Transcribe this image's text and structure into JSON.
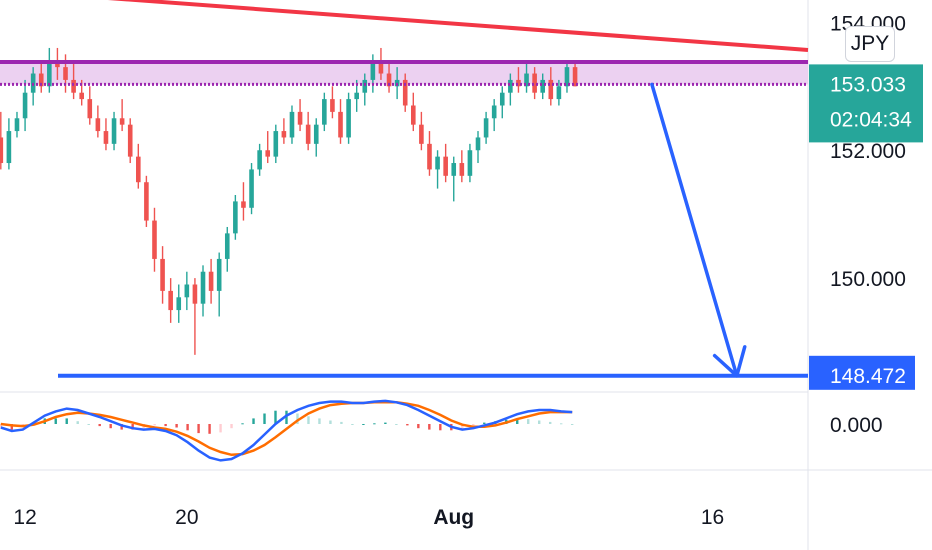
{
  "currency_badge": "JPY",
  "price_tag": {
    "price": "153.033",
    "countdown": "02:04:34",
    "color": "#26a69a"
  },
  "target_tag": {
    "price": "148.472",
    "color": "#2962ff"
  },
  "chart_data": {
    "type": "candlestick",
    "y_tick_labels": [
      "154.000",
      "152.000",
      "150.000"
    ],
    "y_ticks": [
      154.0,
      152.0,
      150.0
    ],
    "ylim": [
      148.25,
      154.35
    ],
    "x_tick_labels": [
      "12",
      "20",
      "Aug",
      "16"
    ],
    "x_tick_positions": [
      5,
      25,
      58,
      90
    ],
    "x_range": [
      1.9,
      101.8
    ],
    "candles_ohlc": [
      [
        152.2,
        152.6,
        151.7,
        151.8
      ],
      [
        151.8,
        152.5,
        151.7,
        152.3
      ],
      [
        152.3,
        152.6,
        152.2,
        152.5
      ],
      [
        152.5,
        153.1,
        152.3,
        152.9
      ],
      [
        152.9,
        153.3,
        152.7,
        153.2
      ],
      [
        153.2,
        153.4,
        152.9,
        153.0
      ],
      [
        153.0,
        153.6,
        152.9,
        153.4
      ],
      [
        153.4,
        153.6,
        153.1,
        153.3
      ],
      [
        153.3,
        153.5,
        152.9,
        153.1
      ],
      [
        153.1,
        153.4,
        152.8,
        152.9
      ],
      [
        152.9,
        153.1,
        152.7,
        152.8
      ],
      [
        152.8,
        153.0,
        152.4,
        152.5
      ],
      [
        152.5,
        152.7,
        152.2,
        152.3
      ],
      [
        152.3,
        152.5,
        152.0,
        152.1
      ],
      [
        152.1,
        152.6,
        152.0,
        152.5
      ],
      [
        152.5,
        152.8,
        152.3,
        152.4
      ],
      [
        152.4,
        152.5,
        151.8,
        151.9
      ],
      [
        151.9,
        152.1,
        151.4,
        151.5
      ],
      [
        151.5,
        151.6,
        150.8,
        150.9
      ],
      [
        150.9,
        151.1,
        150.1,
        150.3
      ],
      [
        150.3,
        150.5,
        149.6,
        149.8
      ],
      [
        149.8,
        150.0,
        149.3,
        149.5
      ],
      [
        149.5,
        149.9,
        149.3,
        149.7
      ],
      [
        149.7,
        150.1,
        149.5,
        149.9
      ],
      [
        149.9,
        150.0,
        148.8,
        149.6
      ],
      [
        149.6,
        150.2,
        149.4,
        150.1
      ],
      [
        150.1,
        150.3,
        149.6,
        149.8
      ],
      [
        149.8,
        150.4,
        149.4,
        150.3
      ],
      [
        150.3,
        150.8,
        150.1,
        150.7
      ],
      [
        150.7,
        151.3,
        150.6,
        151.2
      ],
      [
        151.2,
        151.5,
        150.9,
        151.1
      ],
      [
        151.1,
        151.8,
        151.0,
        151.7
      ],
      [
        151.7,
        152.1,
        151.6,
        152.0
      ],
      [
        152.0,
        152.3,
        151.8,
        151.9
      ],
      [
        151.9,
        152.4,
        151.8,
        152.3
      ],
      [
        152.3,
        152.5,
        152.1,
        152.2
      ],
      [
        152.2,
        152.7,
        152.1,
        152.6
      ],
      [
        152.6,
        152.8,
        152.3,
        152.4
      ],
      [
        152.4,
        152.6,
        152.0,
        152.1
      ],
      [
        152.1,
        152.5,
        151.9,
        152.4
      ],
      [
        152.4,
        152.9,
        152.3,
        152.8
      ],
      [
        152.8,
        153.0,
        152.5,
        152.6
      ],
      [
        152.6,
        152.8,
        152.1,
        152.2
      ],
      [
        152.2,
        152.9,
        152.1,
        152.8
      ],
      [
        152.8,
        153.1,
        152.6,
        152.9
      ],
      [
        152.9,
        153.2,
        152.7,
        153.1
      ],
      [
        153.1,
        153.5,
        152.9,
        153.4
      ],
      [
        153.4,
        153.6,
        153.1,
        153.2
      ],
      [
        153.2,
        153.4,
        152.9,
        153.0
      ],
      [
        153.0,
        153.3,
        152.8,
        153.1
      ],
      [
        153.1,
        153.2,
        152.6,
        152.7
      ],
      [
        152.7,
        152.9,
        152.3,
        152.4
      ],
      [
        152.4,
        152.6,
        152.0,
        152.1
      ],
      [
        152.1,
        152.3,
        151.6,
        151.7
      ],
      [
        151.7,
        152.0,
        151.4,
        151.9
      ],
      [
        151.9,
        152.1,
        151.5,
        151.6
      ],
      [
        151.6,
        151.9,
        151.2,
        151.8
      ],
      [
        151.8,
        152.0,
        151.5,
        151.6
      ],
      [
        151.6,
        152.1,
        151.5,
        152.0
      ],
      [
        152.0,
        152.3,
        151.8,
        152.2
      ],
      [
        152.2,
        152.6,
        152.1,
        152.5
      ],
      [
        152.5,
        152.8,
        152.3,
        152.7
      ],
      [
        152.7,
        153.0,
        152.5,
        152.9
      ],
      [
        152.9,
        153.2,
        152.7,
        153.1
      ],
      [
        153.1,
        153.3,
        152.9,
        153.0
      ],
      [
        153.0,
        153.4,
        152.9,
        153.2
      ],
      [
        153.2,
        153.3,
        152.8,
        152.9
      ],
      [
        152.9,
        153.2,
        152.8,
        153.1
      ],
      [
        153.1,
        153.3,
        152.7,
        152.8
      ],
      [
        152.8,
        153.1,
        152.7,
        153.0
      ],
      [
        153.0,
        153.4,
        152.9,
        153.3
      ],
      [
        153.3,
        153.4,
        153.0,
        153.0
      ]
    ],
    "horizontal_lines": [
      {
        "price": 153.38,
        "color": "#9c27b0"
      },
      {
        "price": 153.03,
        "color": "#9c27b0",
        "style": "dotted"
      },
      {
        "price": 148.472,
        "color": "#2962ff"
      }
    ],
    "resistance_zone": [
      153.03,
      153.38
    ],
    "trendline": {
      "from": [
        1.9,
        154.35
      ],
      "to": [
        101.8,
        153.6
      ],
      "color": "#f23645"
    },
    "projection_arrow": {
      "from": [
        82.5,
        153.03
      ],
      "to": [
        93,
        148.472
      ],
      "color": "#2962ff"
    },
    "macd": {
      "zero_label": "0.000",
      "macd_line": [
        -0.05,
        -0.1,
        -0.08,
        0.02,
        0.12,
        0.18,
        0.22,
        0.2,
        0.15,
        0.1,
        0.04,
        -0.02,
        -0.06,
        -0.08,
        -0.07,
        -0.1,
        -0.16,
        -0.26,
        -0.38,
        -0.48,
        -0.52,
        -0.5,
        -0.42,
        -0.3,
        -0.15,
        0.0,
        0.12,
        0.2,
        0.26,
        0.3,
        0.32,
        0.32,
        0.3,
        0.3,
        0.32,
        0.33,
        0.31,
        0.27,
        0.2,
        0.12,
        0.04,
        -0.04,
        -0.08,
        -0.06,
        -0.02,
        0.02,
        0.08,
        0.14,
        0.18,
        0.2,
        0.2,
        0.18,
        0.17
      ],
      "signal_line": [
        0.0,
        -0.02,
        -0.03,
        -0.01,
        0.04,
        0.1,
        0.14,
        0.16,
        0.15,
        0.13,
        0.1,
        0.06,
        0.02,
        -0.02,
        -0.05,
        -0.07,
        -0.11,
        -0.17,
        -0.25,
        -0.34,
        -0.4,
        -0.44,
        -0.43,
        -0.38,
        -0.3,
        -0.19,
        -0.07,
        0.05,
        0.15,
        0.22,
        0.27,
        0.29,
        0.3,
        0.3,
        0.31,
        0.31,
        0.31,
        0.29,
        0.26,
        0.2,
        0.13,
        0.05,
        -0.01,
        -0.04,
        -0.04,
        -0.02,
        0.02,
        0.07,
        0.11,
        0.15,
        0.17,
        0.17,
        0.17
      ]
    }
  }
}
